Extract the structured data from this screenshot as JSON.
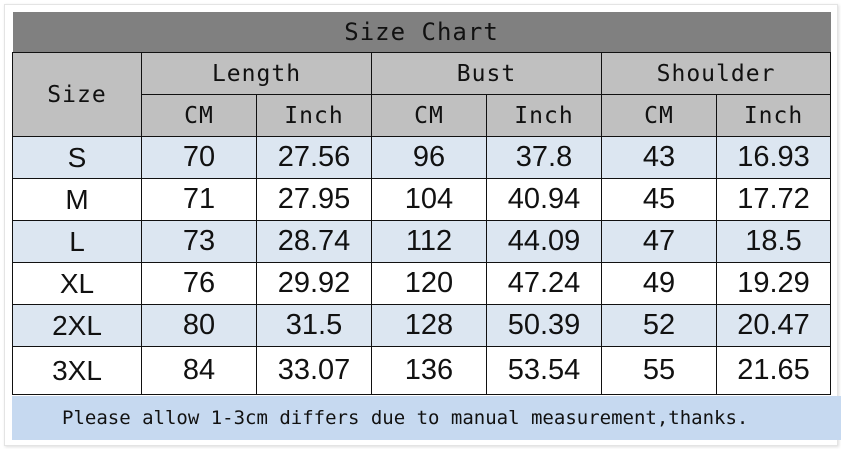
{
  "title": "Size Chart",
  "headers": {
    "size": "Size",
    "groups": [
      "Length",
      "Bust",
      "Shoulder"
    ],
    "units": [
      "CM",
      "Inch",
      "CM",
      "Inch",
      "CM",
      "Inch"
    ]
  },
  "rows": [
    {
      "size": "S",
      "values": [
        "70",
        "27.56",
        "96",
        "37.8",
        "43",
        "16.93"
      ]
    },
    {
      "size": "M",
      "values": [
        "71",
        "27.95",
        "104",
        "40.94",
        "45",
        "17.72"
      ]
    },
    {
      "size": "L",
      "values": [
        "73",
        "28.74",
        "112",
        "44.09",
        "47",
        "18.5"
      ]
    },
    {
      "size": "XL",
      "values": [
        "76",
        "29.92",
        "120",
        "47.24",
        "49",
        "19.29"
      ]
    },
    {
      "size": "2XL",
      "values": [
        "80",
        "31.5",
        "128",
        "50.39",
        "52",
        "20.47"
      ]
    },
    {
      "size": "3XL",
      "values": [
        "84",
        "33.07",
        "136",
        "53.54",
        "55",
        "21.65"
      ]
    }
  ],
  "note": "Please allow 1-3cm differs due to manual measurement,thanks.",
  "colors": {
    "title_bg": "#808080",
    "header_bg": "#c0c0c0",
    "stripe_bg": "#dce6f1",
    "note_bg": "#c6d9f0"
  }
}
